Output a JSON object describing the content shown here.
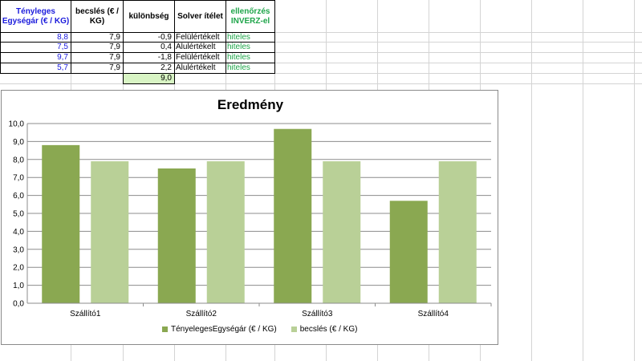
{
  "table": {
    "headers": {
      "actual_price": "Tényleges Egységár (€ / KG)",
      "estimate": "becslés  (€ / KG)",
      "difference": "különbség",
      "solver_verdict": "Solver ítélet",
      "check_inverse": "ellenőrzés INVERZ-el"
    },
    "rows": [
      {
        "actual": "8,8",
        "estimate": "7,9",
        "difference": "-0,9",
        "verdict": "Felülértékelt",
        "check": "hiteles"
      },
      {
        "actual": "7,5",
        "estimate": "7,9",
        "difference": "0,4",
        "verdict": "Alulértékelt",
        "check": "hiteles"
      },
      {
        "actual": "9,7",
        "estimate": "7,9",
        "difference": "-1,8",
        "verdict": "Felülértékelt",
        "check": "hiteles"
      },
      {
        "actual": "5,7",
        "estimate": "7,9",
        "difference": "2,2",
        "verdict": "Alulértékelt",
        "check": "hiteles"
      }
    ],
    "sum": "9,0"
  },
  "colors": {
    "series_actual": "#8aa851",
    "series_estimate": "#b9d097",
    "header_blue": "#1a1adc",
    "check_green": "#1fa54a",
    "sum_fill": "#d8f4c4"
  },
  "chart_data": {
    "type": "bar",
    "title": "Eredmény",
    "categories": [
      "Szállító1",
      "Szállító2",
      "Szállító3",
      "Szállító4"
    ],
    "series": [
      {
        "name": "TényelegesEgységár (€ / KG)",
        "values": [
          8.8,
          7.5,
          9.7,
          5.7
        ]
      },
      {
        "name": "becslés (€ / KG)",
        "values": [
          7.9,
          7.9,
          7.9,
          7.9
        ]
      }
    ],
    "ylim": [
      0,
      10
    ],
    "yticks": [
      "0,0",
      "1,0",
      "2,0",
      "3,0",
      "4,0",
      "5,0",
      "6,0",
      "7,0",
      "8,0",
      "9,0",
      "10,0"
    ],
    "grid": true,
    "legend": "bottom"
  }
}
